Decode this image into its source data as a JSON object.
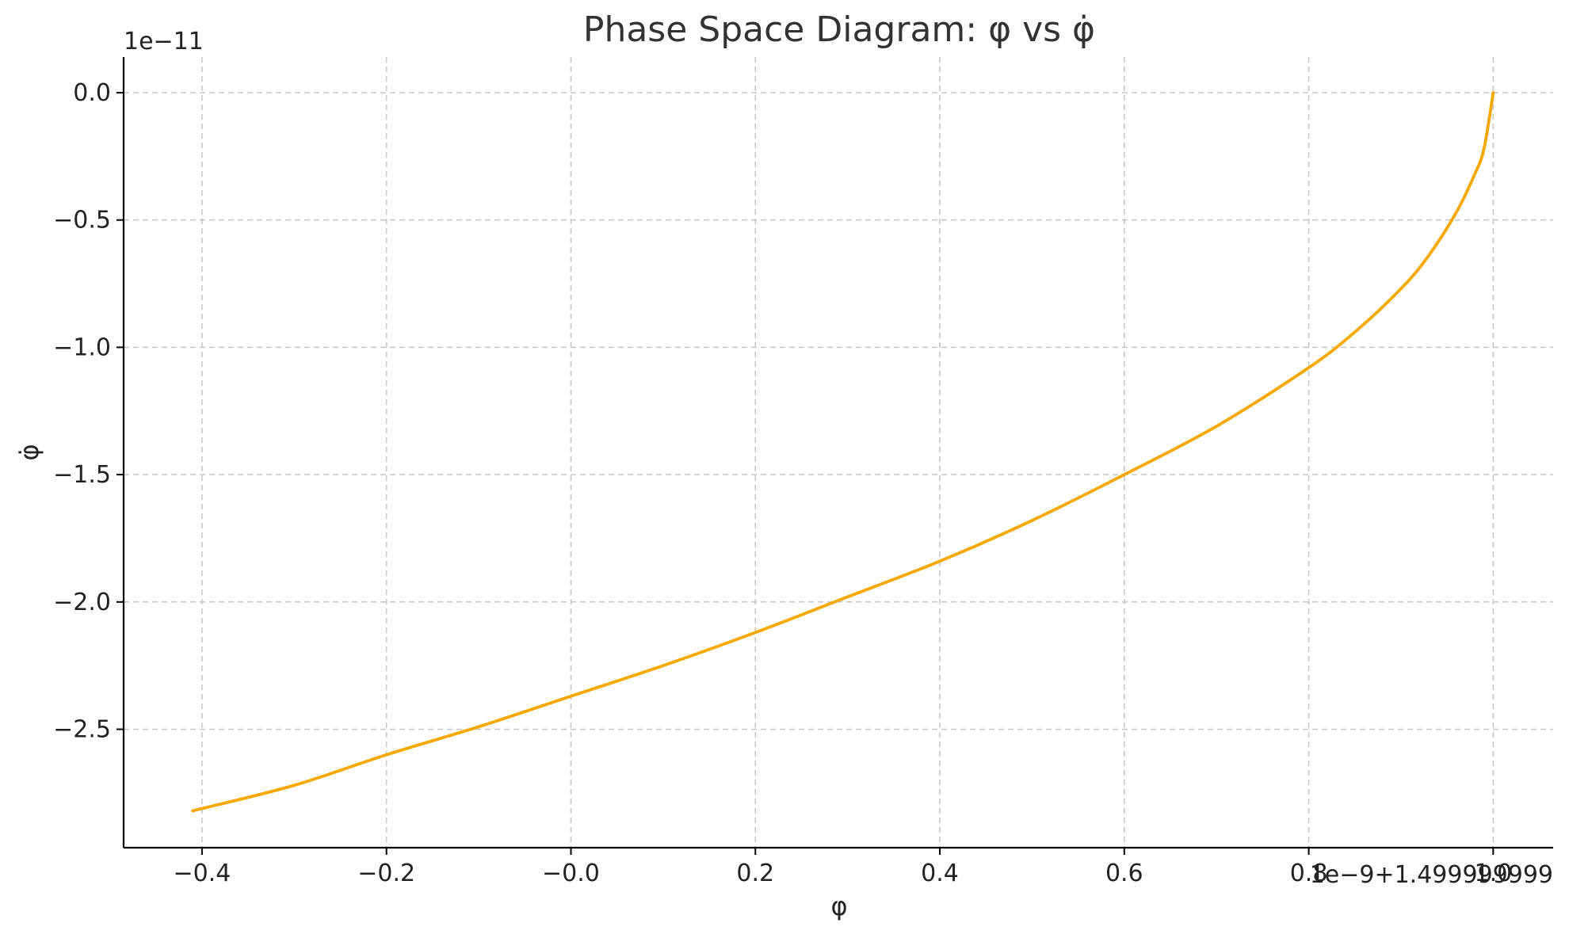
{
  "chart_data": {
    "type": "line",
    "title": "Phase Space Diagram: φ vs φ̇",
    "xlabel": "φ",
    "ylabel": "φ̇",
    "x_offset_text": "1e−9+1.499999999",
    "y_offset_text": "1e−11",
    "xlim": [
      -0.485,
      1.065
    ],
    "ylim": [
      -2.965,
      0.14
    ],
    "x_ticks": [
      -0.4,
      -0.2,
      0.0,
      0.2,
      0.4,
      0.6,
      0.8,
      1.0
    ],
    "x_tick_labels": [
      "−0.4",
      "−0.2",
      "−0.0",
      "0.2",
      "0.4",
      "0.6",
      "0.8",
      "1.0"
    ],
    "y_ticks": [
      0.0,
      -0.5,
      -1.0,
      -1.5,
      -2.0,
      -2.5
    ],
    "y_tick_labels": [
      "0.0",
      "−0.5",
      "−1.0",
      "−1.5",
      "−2.0",
      "−2.5"
    ],
    "grid": true,
    "series": [
      {
        "color": "#F5A800",
        "x": [
          -0.41,
          -0.3,
          -0.2,
          -0.1,
          0.0,
          0.1,
          0.2,
          0.3,
          0.4,
          0.5,
          0.6,
          0.7,
          0.8,
          0.85,
          0.9,
          0.93,
          0.96,
          0.98,
          0.99,
          1.0
        ],
        "y": [
          -2.82,
          -2.72,
          -2.6,
          -2.49,
          -2.37,
          -2.25,
          -2.12,
          -1.98,
          -1.84,
          -1.68,
          -1.5,
          -1.31,
          -1.08,
          -0.94,
          -0.77,
          -0.64,
          -0.47,
          -0.32,
          -0.22,
          0.0
        ]
      }
    ]
  }
}
